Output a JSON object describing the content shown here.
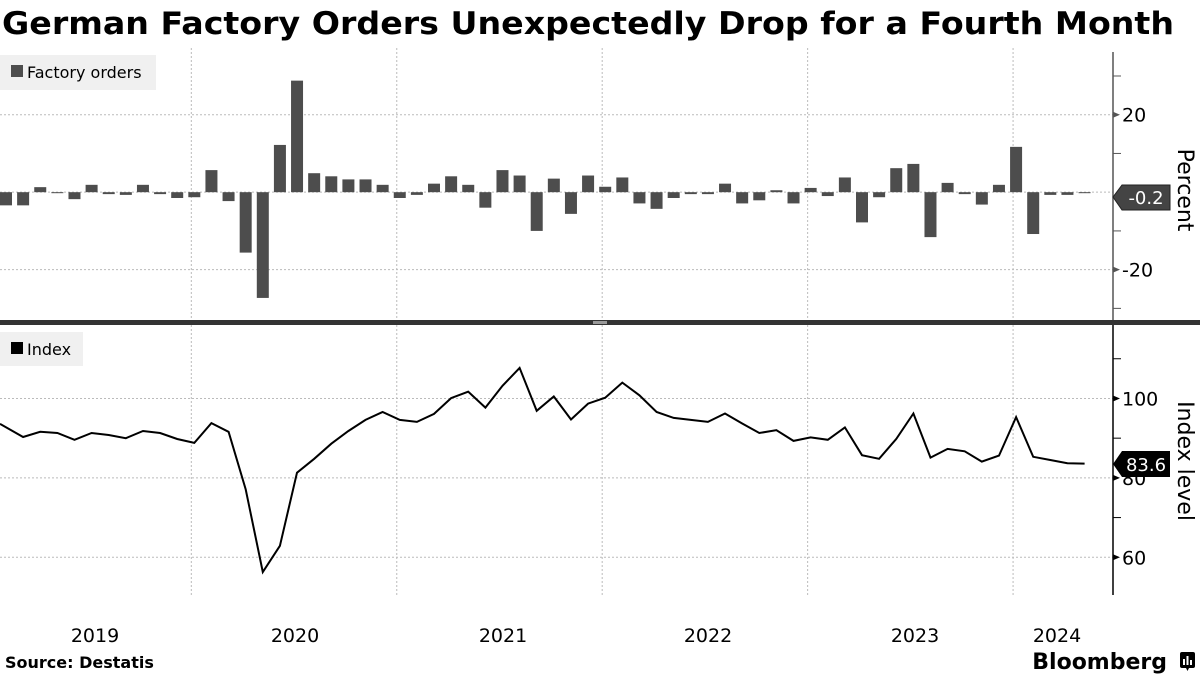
{
  "chart_data": [
    {
      "type": "bar",
      "title": "German Factory Orders Unexpectedly Drop for a Fourth Month",
      "legend": [
        "Factory orders"
      ],
      "legend_placement": "top-left",
      "ylabel": "Percent",
      "ylim": [
        -33,
        38
      ],
      "yticks": [
        20,
        -20
      ],
      "grid": true,
      "x_start": "2019-01",
      "x_end": "2024-04",
      "frequency": "monthly",
      "bar_color": "#4d4d4d",
      "last_value_label": "-0.2",
      "values": [
        -3.4,
        -3.4,
        1.3,
        -0.2,
        -1.8,
        1.9,
        -0.5,
        -0.7,
        1.9,
        -0.5,
        -1.5,
        -1.3,
        5.7,
        -2.3,
        -15.6,
        -27.3,
        12.2,
        28.8,
        4.9,
        4.1,
        3.3,
        3.3,
        1.9,
        -1.5,
        -0.7,
        2.2,
        4.1,
        1.9,
        -4.0,
        5.7,
        4.3,
        -10.0,
        3.5,
        -5.6,
        4.3,
        1.4,
        3.8,
        -2.9,
        -4.3,
        -1.5,
        -0.5,
        -0.5,
        2.2,
        -2.9,
        -2.1,
        0.5,
        -2.9,
        1.1,
        -1.0,
        3.8,
        -7.8,
        -1.3,
        6.2,
        7.3,
        -11.6,
        2.4,
        -0.5,
        -3.2,
        1.9,
        11.7,
        -10.8,
        -0.7,
        -0.7,
        -0.2
      ]
    },
    {
      "type": "line",
      "legend": [
        "Index"
      ],
      "legend_placement": "top-left",
      "ylabel": "Index level",
      "ylim": [
        50.5,
        118.5
      ],
      "yticks": [
        100,
        80,
        60
      ],
      "grid": true,
      "x_start": "2019-01",
      "x_end": "2024-04",
      "frequency": "monthly",
      "line_color": "#000000",
      "last_value_label": "83.6",
      "values": [
        93.6,
        90.3,
        91.6,
        91.3,
        89.6,
        91.3,
        90.8,
        90.0,
        91.8,
        91.3,
        89.8,
        88.8,
        93.8,
        91.6,
        77.1,
        56.3,
        62.9,
        81.3,
        84.8,
        88.6,
        91.8,
        94.6,
        96.6,
        94.6,
        94.1,
        96.1,
        100.1,
        101.7,
        97.7,
        103.2,
        107.7,
        96.9,
        100.5,
        94.7,
        98.7,
        100.2,
        104.0,
        100.8,
        96.6,
        95.1,
        94.6,
        94.1,
        96.2,
        93.7,
        91.3,
        92.0,
        89.3,
        90.2,
        89.6,
        92.7,
        85.7,
        84.8,
        89.8,
        96.2,
        85.1,
        87.3,
        86.7,
        84.1,
        85.6,
        95.3,
        85.3,
        84.5,
        83.7,
        83.6
      ]
    }
  ],
  "x_tick_labels": [
    "2019",
    "2020",
    "2021",
    "2022",
    "2023",
    "2024"
  ],
  "source": "Source:  Destatis",
  "brand": "Bloomberg"
}
